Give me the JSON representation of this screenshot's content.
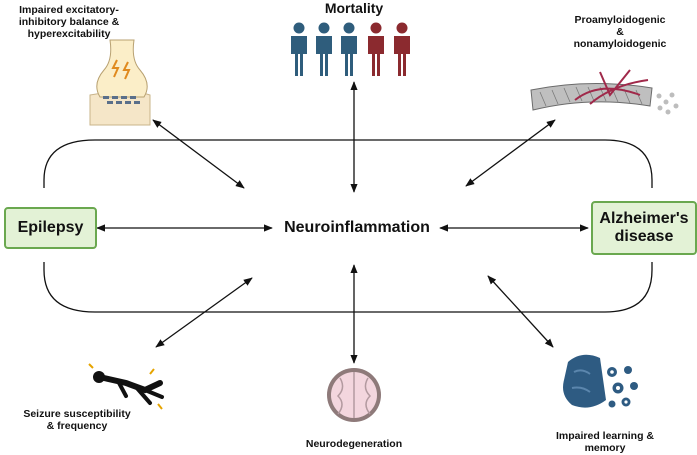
{
  "center": {
    "label": "Neuroinflammation"
  },
  "left_box": {
    "label": "Epilepsy"
  },
  "right_box": {
    "line1": "Alzheimer's",
    "line2": "disease"
  },
  "top": {
    "label": "Mortality"
  },
  "top_left": {
    "line1": "Impaired excitatory-",
    "line2": "inhibitory balance &",
    "line3": "hyperexcitability"
  },
  "top_right": {
    "line1": "Proamyloidogenic",
    "line2": "&",
    "line3": "nonamyloidogenic"
  },
  "bottom_left": {
    "line1": "Seizure susceptibility",
    "line2": "& frequency"
  },
  "bottom": {
    "label": "Neurodegeneration"
  },
  "bottom_right": {
    "line1": "Impaired learning &",
    "line2": "memory"
  },
  "colors": {
    "box_fill": "#e3f2d6",
    "box_border": "#6aa84f",
    "people_blue": "#2f5d7c",
    "people_red": "#8b2a2f",
    "arrow": "#111111"
  },
  "icons": {
    "top": "people-group-icon",
    "top_left": "synapse-icon",
    "top_right": "amyloid-fibril-icon",
    "bottom_left": "seizing-person-icon",
    "bottom": "brain-section-icon",
    "bottom_right": "brain-gears-icon"
  }
}
